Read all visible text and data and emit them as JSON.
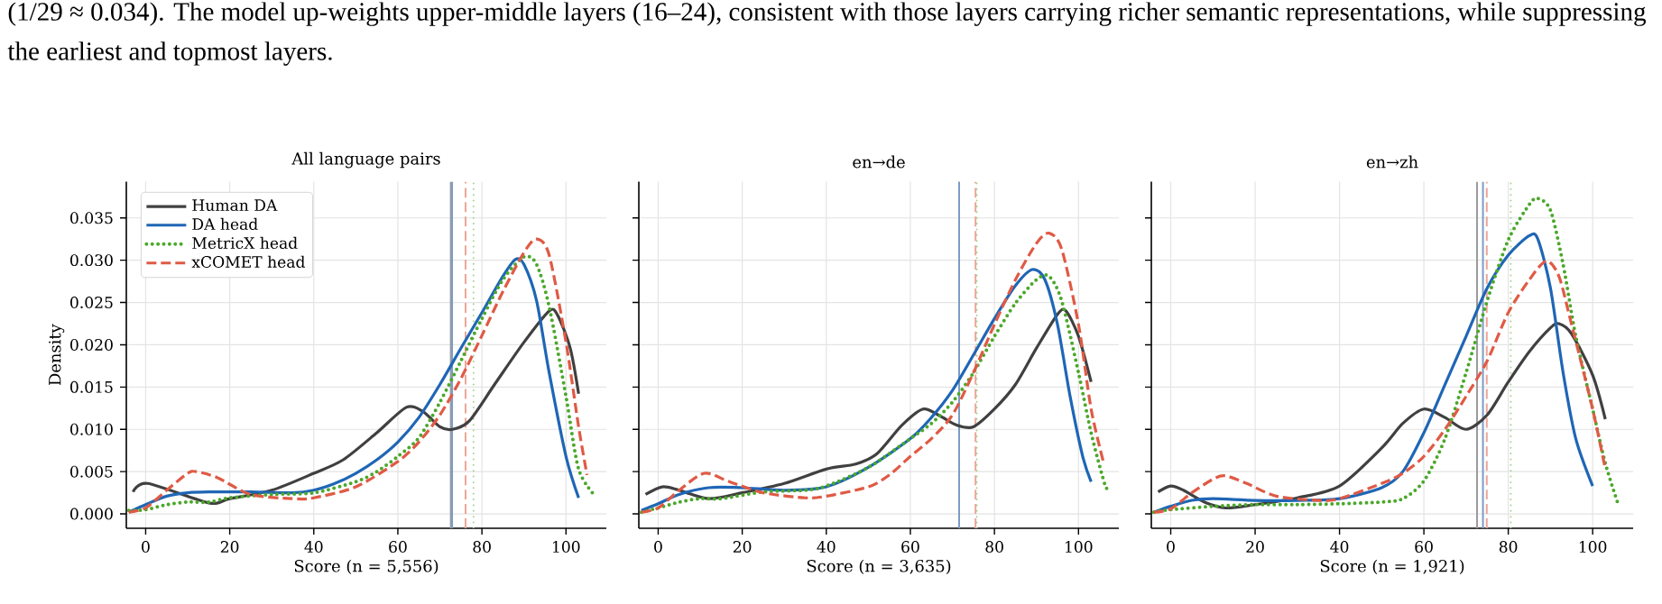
{
  "chart_data": [
    {
      "type": "line",
      "title": "All language pairs",
      "xlabel": "Score (n = 5,556)",
      "ylabel": "Density",
      "annotations": [
        "(1/29 ≈ 0.034). The model up-weights upper-middle layers (16–24), consistent with those layers carrying richer semantic representations, while suppressing the earliest and topmost layers."
      ],
      "xlim": [
        -4.6,
        109.6
      ],
      "ylim": [
        -0.0017,
        0.0393
      ],
      "xticks": [
        0,
        20,
        40,
        60,
        80,
        100
      ],
      "yticks": [
        {
          "value": 0,
          "label": "0.000"
        },
        {
          "value": 0.005,
          "label": "0.005"
        },
        {
          "value": 0.01,
          "label": "0.010"
        },
        {
          "value": 0.015,
          "label": "0.015"
        },
        {
          "value": 0.02,
          "label": "0.020"
        },
        {
          "value": 0.025,
          "label": "0.025"
        },
        {
          "value": 0.03,
          "label": "0.030"
        },
        {
          "value": 0.035,
          "label": "0.035"
        }
      ],
      "grid": true,
      "legend": "top left",
      "marker": "none",
      "series": [
        {
          "name": "Human DA",
          "color": "#404040",
          "line_style": "solid",
          "x": [
            -3,
            0.5,
            15,
            20,
            30,
            40,
            47,
            55,
            62,
            66,
            70,
            73,
            77,
            83,
            90,
            96,
            98,
            101,
            103
          ],
          "values": [
            0.0026,
            0.0036,
            0.0013,
            0.0018,
            0.0028,
            0.0048,
            0.0064,
            0.0096,
            0.0126,
            0.0121,
            0.0103,
            0.01,
            0.011,
            0.0153,
            0.0203,
            0.024,
            0.0235,
            0.0196,
            0.0142
          ]
        },
        {
          "name": "DA head",
          "color": "#1f66b5",
          "line_style": "solid",
          "x": [
            -4,
            0,
            5,
            10,
            15,
            25,
            35,
            40,
            45,
            50,
            55,
            60,
            65,
            70,
            75,
            80,
            85,
            88,
            90,
            93,
            96,
            100,
            103
          ],
          "values": [
            0.0002,
            0.0011,
            0.0021,
            0.0025,
            0.0026,
            0.0026,
            0.0025,
            0.0028,
            0.0036,
            0.0048,
            0.0064,
            0.0085,
            0.0114,
            0.0153,
            0.0196,
            0.0238,
            0.0281,
            0.0301,
            0.0295,
            0.0252,
            0.0167,
            0.0068,
            0.0019
          ]
        },
        {
          "name": "MetricX head",
          "color": "#4aa82a",
          "line_style": "dotted",
          "x": [
            -4,
            0,
            5,
            10,
            15,
            20,
            30,
            40,
            50,
            55,
            60,
            65,
            70,
            75,
            80,
            85,
            90,
            93,
            96,
            100,
            103,
            107
          ],
          "values": [
            0.0004,
            0.0005,
            0.0011,
            0.0014,
            0.0014,
            0.0019,
            0.0023,
            0.0025,
            0.0038,
            0.005,
            0.0068,
            0.009,
            0.0132,
            0.0181,
            0.0231,
            0.0277,
            0.0304,
            0.0295,
            0.0245,
            0.0139,
            0.0053,
            0.0021
          ]
        },
        {
          "name": "xCOMET head",
          "color": "#e05a45",
          "line_style": "dashed",
          "x": [
            -4,
            0,
            5,
            10,
            12,
            17,
            25,
            35,
            40,
            50,
            60,
            65,
            70,
            75,
            80,
            85,
            90,
            93,
            96,
            100,
            103,
            105
          ],
          "values": [
            0.0002,
            0.0007,
            0.0028,
            0.0048,
            0.005,
            0.0043,
            0.0023,
            0.0018,
            0.0019,
            0.0032,
            0.0062,
            0.0085,
            0.0117,
            0.016,
            0.0211,
            0.0263,
            0.0309,
            0.0325,
            0.0306,
            0.0203,
            0.0103,
            0.0046
          ]
        }
      ],
      "ref_lines": [
        {
          "axis": "x",
          "value": 72.6,
          "color": "#9a9a9a",
          "line_style": "solid"
        },
        {
          "axis": "x",
          "value": 72.9,
          "color": "#7b9cc4",
          "line_style": "solid"
        },
        {
          "axis": "x",
          "value": 76.1,
          "color": "#eba596",
          "line_style": "dashed"
        },
        {
          "axis": "x",
          "value": 78.0,
          "color": "#a5d490",
          "line_style": "dotted"
        }
      ]
    },
    {
      "type": "line",
      "title": "en→de",
      "xlabel": "Score (n = 3,635)",
      "xlim": [
        -4.6,
        109.6
      ],
      "ylim": [
        -0.0017,
        0.0393
      ],
      "xticks": [
        0,
        20,
        40,
        60,
        80,
        100
      ],
      "yticks": [
        {
          "value": 0,
          "label": null
        },
        {
          "value": 0.005,
          "label": null
        },
        {
          "value": 0.01,
          "label": null
        },
        {
          "value": 0.015,
          "label": null
        },
        {
          "value": 0.02,
          "label": null
        },
        {
          "value": 0.025,
          "label": null
        },
        {
          "value": 0.03,
          "label": null
        },
        {
          "value": 0.035,
          "label": null
        }
      ],
      "tick_labels": "x",
      "grid": true,
      "marker": "none",
      "series": [
        {
          "color": "#404040",
          "line_style": "solid",
          "x": [
            -3,
            1,
            5,
            12,
            20,
            30,
            40,
            47,
            52,
            58,
            63,
            67,
            71,
            75,
            80,
            85,
            90,
            95,
            97,
            100,
            103
          ],
          "values": [
            0.0023,
            0.0032,
            0.0028,
            0.0018,
            0.0025,
            0.0036,
            0.0053,
            0.0059,
            0.0071,
            0.0105,
            0.0124,
            0.0116,
            0.0105,
            0.0103,
            0.0124,
            0.0153,
            0.0196,
            0.0236,
            0.024,
            0.021,
            0.0156
          ]
        },
        {
          "color": "#1f66b5",
          "line_style": "solid",
          "x": [
            -4,
            0,
            5,
            12,
            20,
            30,
            40,
            50,
            60,
            65,
            70,
            75,
            80,
            85,
            89,
            92,
            95,
            98,
            101,
            103
          ],
          "values": [
            0.0004,
            0.0012,
            0.0023,
            0.0031,
            0.0031,
            0.0028,
            0.0032,
            0.0055,
            0.0089,
            0.0114,
            0.0146,
            0.0188,
            0.0231,
            0.027,
            0.0289,
            0.0277,
            0.0224,
            0.0139,
            0.0068,
            0.0038
          ]
        },
        {
          "color": "#4aa82a",
          "line_style": "dotted",
          "x": [
            -4,
            0,
            5,
            10,
            15,
            25,
            35,
            40,
            50,
            60,
            65,
            70,
            75,
            80,
            85,
            90,
            93,
            96,
            100,
            103,
            106,
            107
          ],
          "values": [
            0.0002,
            0.0007,
            0.0014,
            0.0018,
            0.0018,
            0.0026,
            0.0028,
            0.0033,
            0.0055,
            0.0089,
            0.0107,
            0.0132,
            0.0167,
            0.021,
            0.0249,
            0.0277,
            0.0281,
            0.0252,
            0.0167,
            0.0096,
            0.0039,
            0.0028
          ]
        },
        {
          "color": "#e05a45",
          "line_style": "dashed",
          "x": [
            -4,
            0,
            5,
            11,
            17,
            25,
            35,
            40,
            50,
            55,
            60,
            65,
            70,
            75,
            80,
            85,
            90,
            93,
            96,
            100,
            103,
            106
          ],
          "values": [
            0.0002,
            0.0007,
            0.0028,
            0.0048,
            0.0038,
            0.0025,
            0.0019,
            0.0021,
            0.0032,
            0.0046,
            0.0068,
            0.0089,
            0.0117,
            0.0167,
            0.0224,
            0.0277,
            0.032,
            0.0332,
            0.0313,
            0.0224,
            0.0124,
            0.006
          ]
        }
      ],
      "ref_lines": [
        {
          "axis": "x",
          "value": 71.6,
          "color": "#9a9a9a",
          "line_style": "solid"
        },
        {
          "axis": "x",
          "value": 71.6,
          "color": "#7b9cc4",
          "line_style": "solid"
        },
        {
          "axis": "x",
          "value": 75.5,
          "color": "#eba596",
          "line_style": "dashed"
        },
        {
          "axis": "x",
          "value": 75.8,
          "color": "#a5d490",
          "line_style": "dotted"
        }
      ]
    },
    {
      "type": "line",
      "title": "en→zh",
      "xlabel": "Score (n = 1,921)",
      "xlim": [
        -4.6,
        109.6
      ],
      "ylim": [
        -0.0017,
        0.0393
      ],
      "xticks": [
        0,
        20,
        40,
        60,
        80,
        100
      ],
      "yticks": [
        {
          "value": 0,
          "label": null
        },
        {
          "value": 0.005,
          "label": null
        },
        {
          "value": 0.01,
          "label": null
        },
        {
          "value": 0.015,
          "label": null
        },
        {
          "value": 0.02,
          "label": null
        },
        {
          "value": 0.025,
          "label": null
        },
        {
          "value": 0.03,
          "label": null
        },
        {
          "value": 0.035,
          "label": null
        }
      ],
      "tick_labels": "x",
      "grid": true,
      "marker": "none",
      "series": [
        {
          "color": "#404040",
          "line_style": "solid",
          "x": [
            -3,
            0,
            3,
            8,
            13,
            20,
            30,
            40,
            50,
            55,
            60,
            65,
            70,
            75,
            80,
            85,
            90,
            92,
            95,
            100,
            103
          ],
          "values": [
            0.0026,
            0.0033,
            0.0028,
            0.0014,
            0.0007,
            0.0011,
            0.0019,
            0.0033,
            0.0078,
            0.0107,
            0.0124,
            0.0114,
            0.01,
            0.0117,
            0.0156,
            0.0192,
            0.022,
            0.0225,
            0.0213,
            0.0164,
            0.0112
          ]
        },
        {
          "color": "#1f66b5",
          "line_style": "solid",
          "x": [
            -4,
            0,
            5,
            10,
            20,
            30,
            40,
            50,
            55,
            60,
            65,
            70,
            75,
            80,
            85,
            87,
            90,
            93,
            96,
            100
          ],
          "values": [
            0.0002,
            0.0009,
            0.0016,
            0.0018,
            0.0016,
            0.0016,
            0.0018,
            0.0031,
            0.005,
            0.0096,
            0.0153,
            0.021,
            0.0267,
            0.0306,
            0.0329,
            0.0325,
            0.0267,
            0.0167,
            0.0089,
            0.0033
          ]
        },
        {
          "color": "#4aa82a",
          "line_style": "dotted",
          "x": [
            -4,
            0,
            10,
            20,
            30,
            40,
            50,
            55,
            60,
            65,
            70,
            75,
            80,
            85,
            87,
            90,
            93,
            96,
            100,
            103,
            106
          ],
          "values": [
            0.0002,
            0.0005,
            0.0009,
            0.0011,
            0.0011,
            0.0012,
            0.0014,
            0.0018,
            0.0039,
            0.0089,
            0.0167,
            0.0252,
            0.0324,
            0.0366,
            0.0373,
            0.0359,
            0.0295,
            0.021,
            0.0124,
            0.006,
            0.0012
          ]
        },
        {
          "color": "#e05a45",
          "line_style": "dashed",
          "x": [
            -4,
            0,
            5,
            10,
            13,
            18,
            25,
            35,
            40,
            50,
            55,
            60,
            65,
            70,
            75,
            80,
            85,
            89,
            92,
            95,
            100,
            103
          ],
          "values": [
            0.0002,
            0.0006,
            0.0025,
            0.0041,
            0.0045,
            0.0036,
            0.0021,
            0.0016,
            0.0018,
            0.0036,
            0.0048,
            0.0068,
            0.01,
            0.0139,
            0.0181,
            0.0238,
            0.0277,
            0.0299,
            0.0281,
            0.0224,
            0.0124,
            0.0053
          ]
        }
      ],
      "ref_lines": [
        {
          "axis": "x",
          "value": 72.6,
          "color": "#9a9a9a",
          "line_style": "solid"
        },
        {
          "axis": "x",
          "value": 74.0,
          "color": "#7b9cc4",
          "line_style": "solid"
        },
        {
          "axis": "x",
          "value": 74.9,
          "color": "#eba596",
          "line_style": "dashed"
        },
        {
          "axis": "x",
          "value": 80.6,
          "color": "#a5d490",
          "line_style": "dotted"
        }
      ]
    }
  ]
}
